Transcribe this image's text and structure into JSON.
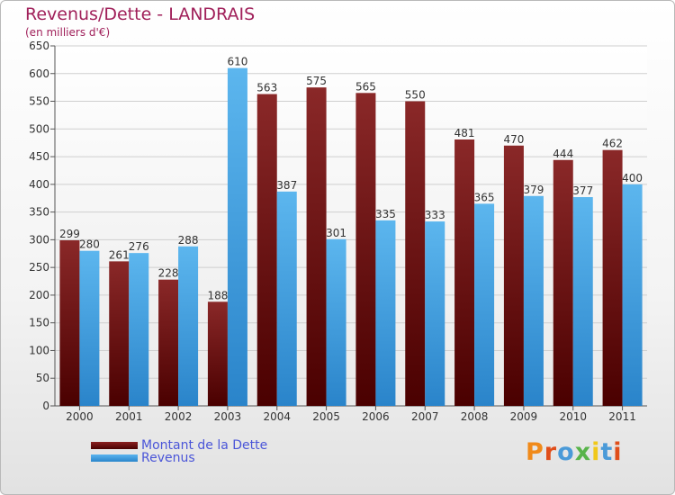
{
  "chart_data": {
    "type": "bar",
    "title": "Revenus/Dette - LANDRAIS",
    "subtitle": "(en milliers d'€)",
    "categories": [
      "2000",
      "2001",
      "2002",
      "2003",
      "2004",
      "2005",
      "2006",
      "2007",
      "2008",
      "2009",
      "2010",
      "2011"
    ],
    "series": [
      {
        "name": "Montant de la Dette",
        "color": "#6b1414",
        "values": [
          299,
          261,
          228,
          188,
          563,
          575,
          565,
          550,
          481,
          470,
          444,
          462
        ]
      },
      {
        "name": "Revenus",
        "color": "#4aa6e8",
        "values": [
          280,
          276,
          288,
          610,
          387,
          301,
          335,
          333,
          365,
          379,
          377,
          400
        ]
      }
    ],
    "ylim": [
      0,
      650
    ],
    "yticks": [
      0,
      50,
      100,
      150,
      200,
      250,
      300,
      350,
      400,
      450,
      500,
      550,
      600,
      650
    ],
    "grid": true,
    "legend_position": "bottom-left"
  },
  "branding": {
    "logo_text": "Proxiti",
    "logo_colors": [
      "#f08a1a",
      "#e04e1a",
      "#4a9ad8",
      "#58b44a",
      "#f0c81a",
      "#4a9ad8",
      "#e04e1a"
    ]
  }
}
